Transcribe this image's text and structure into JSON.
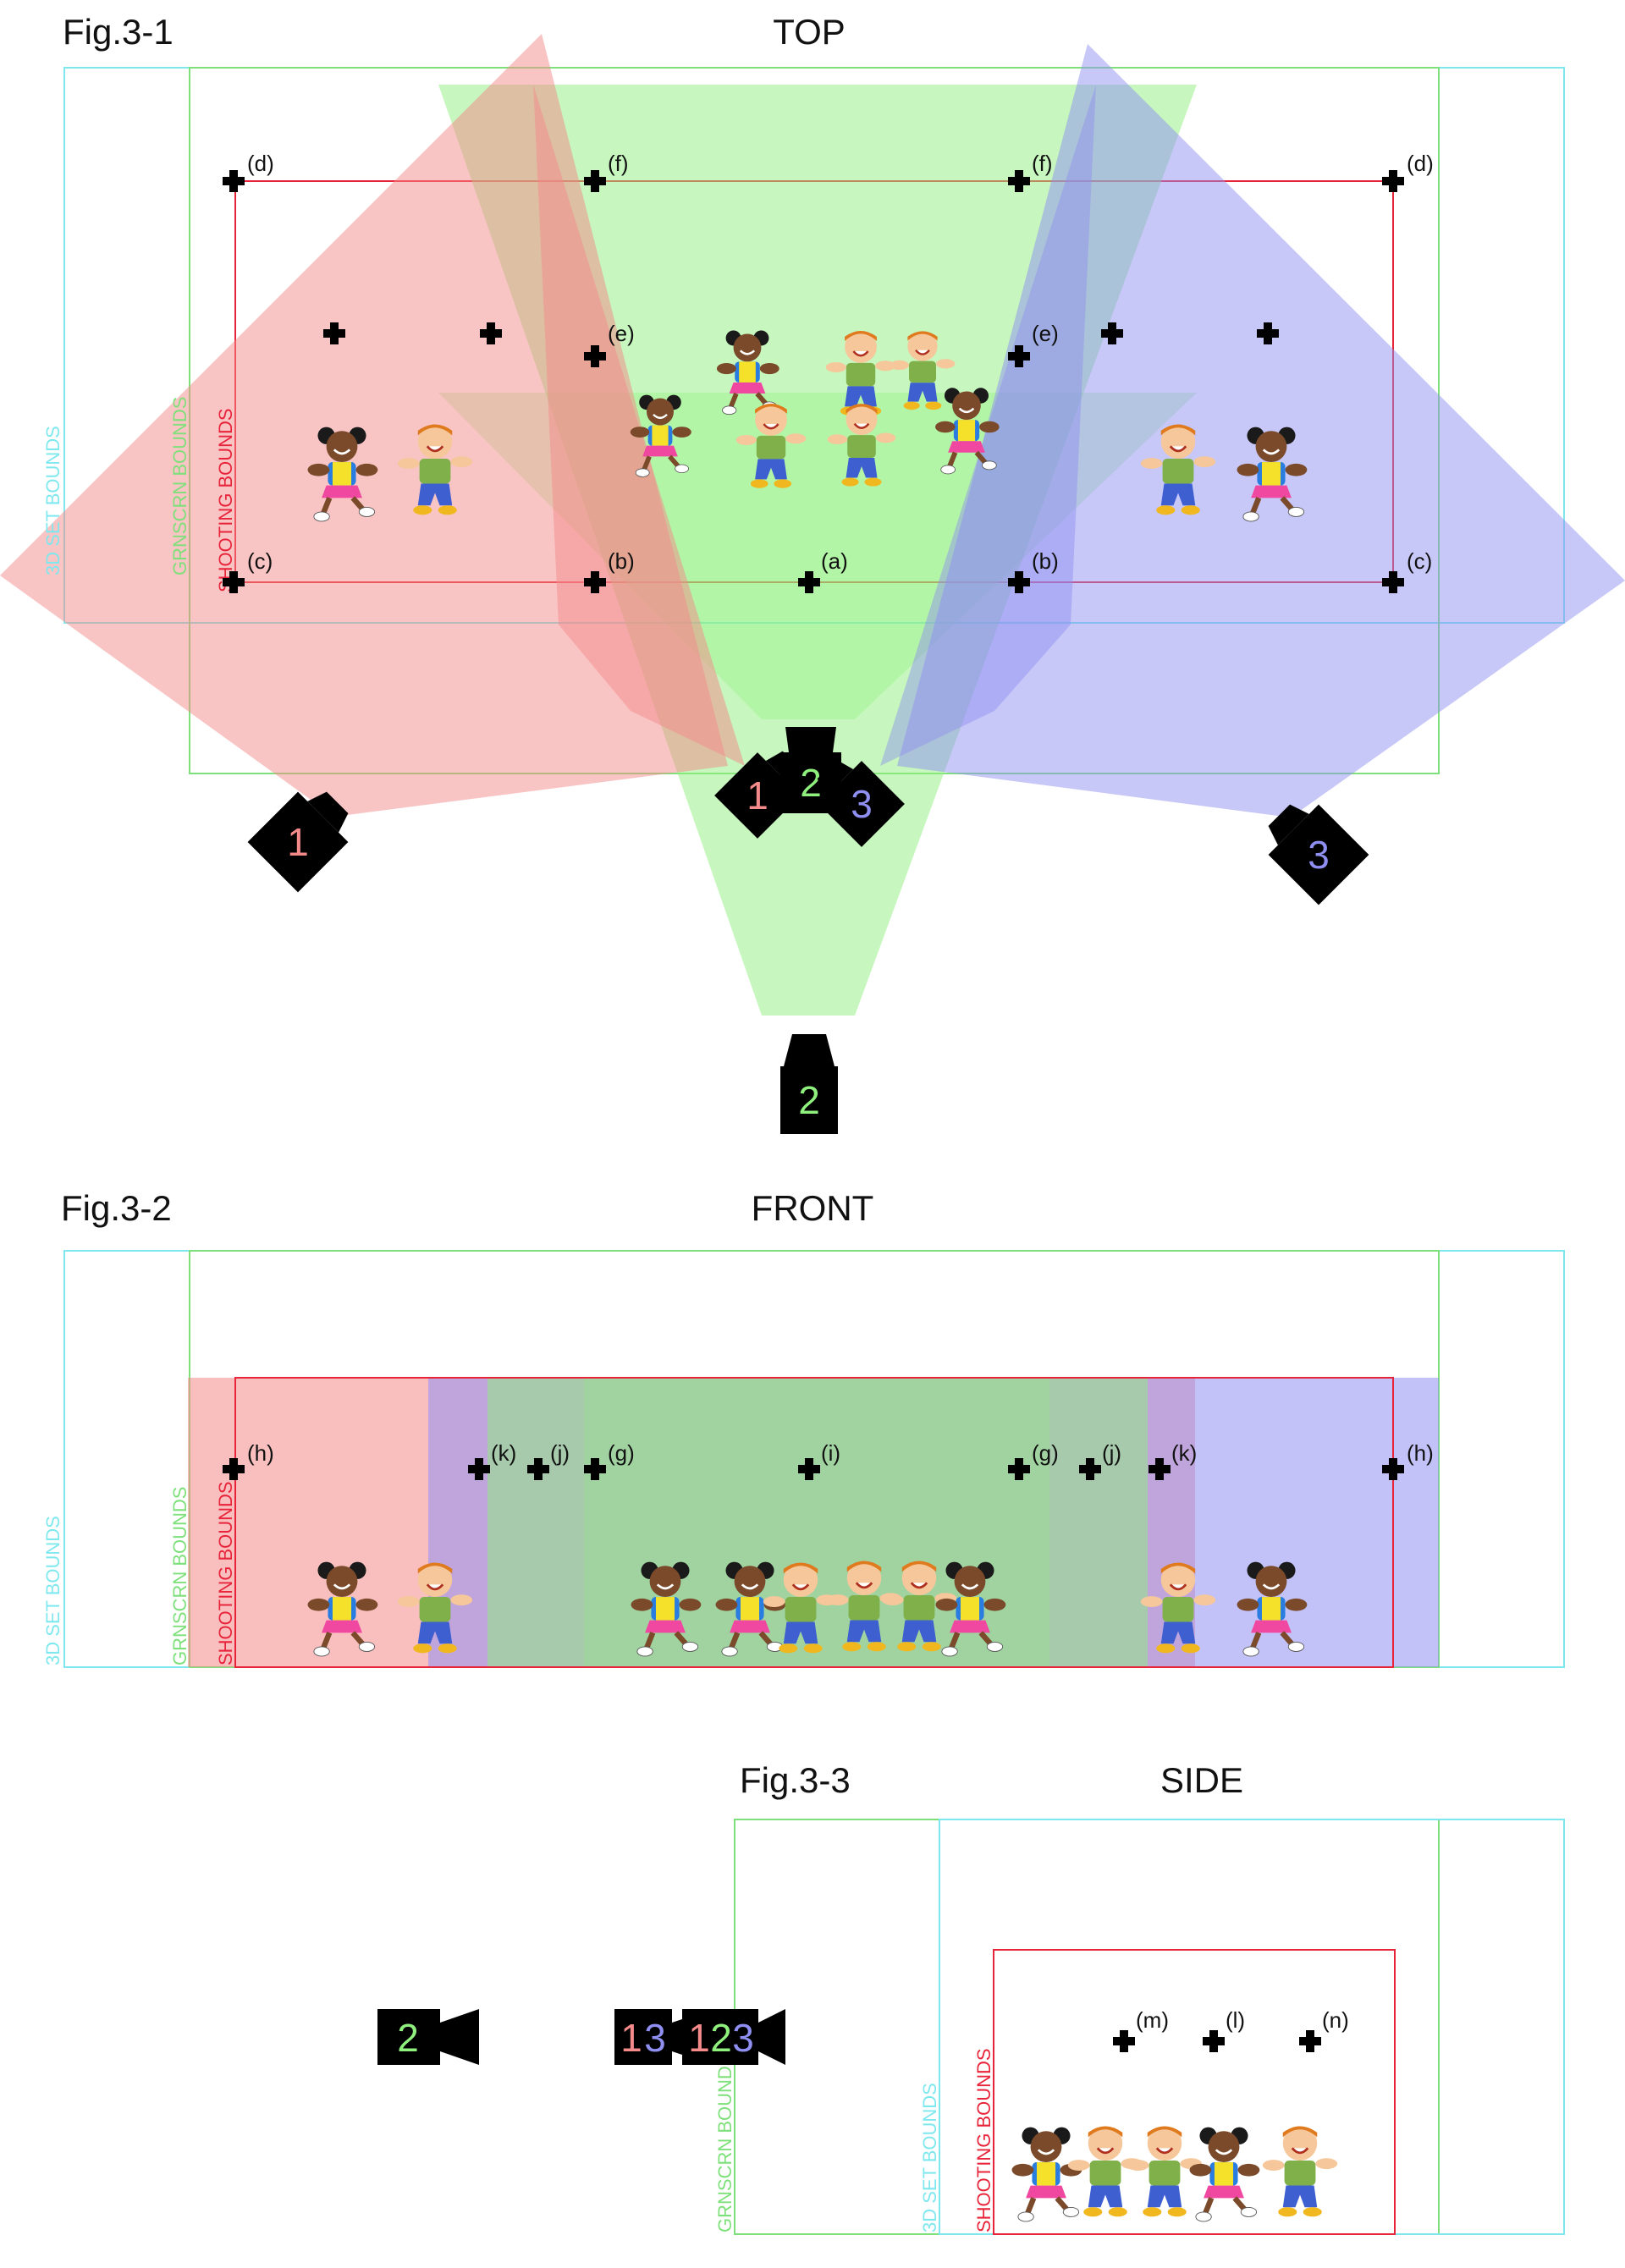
{
  "colors": {
    "cam1": "#f48a8a",
    "cam2": "#90f07e",
    "cam3": "#8f8ff2",
    "shooting_bounds": "#e8243a",
    "grnscrn_bounds": "#7ee07a",
    "set_bounds": "#7ee8ee",
    "marker": "#000000"
  },
  "fig1": {
    "label": "Fig.3-1",
    "title": "TOP",
    "bounds": {
      "set": "3D SET BOUNDS",
      "grnscrn": "GRNSCRN BOUNDS",
      "shooting": "SHOOTING BOUNDS"
    },
    "points": {
      "d_left": "(d)",
      "f_left": "(f)",
      "f_right": "(f)",
      "d_right": "(d)",
      "e_left": "(e)",
      "e_right": "(e)",
      "c_left": "(c)",
      "b_left": "(b)",
      "a": "(a)",
      "b_right": "(b)",
      "c_right": "(c)"
    },
    "cameras": {
      "cam1_far": "1",
      "cam2_near": "2",
      "cam1_near": "1",
      "cam3_near": "3",
      "cam3_far": "3",
      "cam2_far": "2"
    },
    "children_icons": "children-cartoon"
  },
  "fig2": {
    "label": "Fig.3-2",
    "title": "FRONT",
    "bounds": {
      "set": "3D SET BOUNDS",
      "grnscrn": "GRNSCRN BOUNDS",
      "shooting": "SHOOTING BOUNDS"
    },
    "points": {
      "h_left": "(h)",
      "k_left": "(k)",
      "j_left": "(j)",
      "g_left": "(g)",
      "i": "(i)",
      "g_right": "(g)",
      "j_right": "(j)",
      "k_right": "(k)",
      "h_right": "(h)"
    }
  },
  "fig3": {
    "label": "Fig.3-3",
    "title": "SIDE",
    "bounds": {
      "set": "3D SET BOUNDS",
      "grnscrn": "GRNSCRN BOUNDS",
      "shooting": "SHOOTING BOUNDS"
    },
    "points": {
      "m": "(m)",
      "l": "(l)",
      "n": "(n)"
    },
    "cameras": {
      "far": "2",
      "mid_1": "1",
      "mid_3": "3",
      "near_1": "1",
      "near_2": "2",
      "near_3": "3"
    }
  }
}
